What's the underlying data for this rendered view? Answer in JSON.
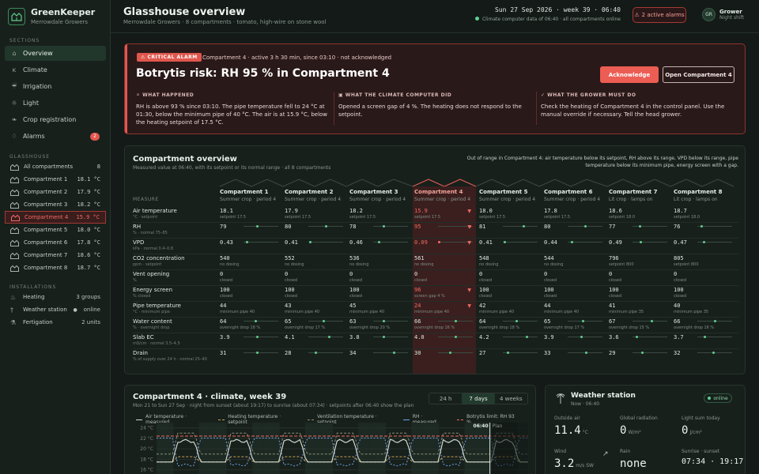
{
  "brand": {
    "name": "GreenKeeper",
    "sub": "Merrowdale Growers"
  },
  "sidebar": {
    "sections_label": "SECTIONS",
    "items": [
      {
        "label": "Overview",
        "icon": "home-icon",
        "active": true
      },
      {
        "label": "Climate",
        "icon": "thermometer-icon"
      },
      {
        "label": "Irrigation",
        "icon": "droplet-icon"
      },
      {
        "label": "Light",
        "icon": "sun-icon"
      },
      {
        "label": "Crop registration",
        "icon": "leaf-icon"
      },
      {
        "label": "Alarms",
        "icon": "bell-icon",
        "badge": "2"
      }
    ],
    "glasshouse_label": "GLASSHOUSE",
    "glasshouse": [
      {
        "label": "All compartments",
        "value": "8"
      },
      {
        "label": "Compartment 1",
        "value": "18.1 °C"
      },
      {
        "label": "Compartment 2",
        "value": "17.9 °C"
      },
      {
        "label": "Compartment 3",
        "value": "18.2 °C"
      },
      {
        "label": "Compartment 4",
        "value": "15.9 °C",
        "alarm": true
      },
      {
        "label": "Compartment 5",
        "value": "18.0 °C"
      },
      {
        "label": "Compartment 6",
        "value": "17.8 °C"
      },
      {
        "label": "Compartment 7",
        "value": "18.6 °C"
      },
      {
        "label": "Compartment 8",
        "value": "18.7 °C"
      }
    ],
    "installations_label": "INSTALLATIONS",
    "installations": [
      {
        "label": "Heating",
        "value": "3 groups",
        "icon": "flame-icon"
      },
      {
        "label": "Weather station",
        "value": "online",
        "icon": "antenna-icon",
        "online": true
      },
      {
        "label": "Fertigation",
        "value": "2 units",
        "icon": "flask-icon"
      }
    ]
  },
  "header": {
    "title": "Glasshouse overview",
    "subtitle": "Merrowdale Growers · 8 compartments · tomato, high-wire on stone wool",
    "date": "Sun 27 Sep 2026 · week 39 · 06:40",
    "status": "Climate computer data of 06:40 · all compartments online",
    "alarms": "2 active alarms",
    "user_initials": "GR",
    "user_name": "Grower",
    "user_role": "Night shift"
  },
  "alert": {
    "tag": "CRITICAL ALARM",
    "meta": "Compartment 4 · active 3 h 30 min, since 03:10 · not acknowledged",
    "title": "Botrytis risk: RH 95 % in Compartment 4",
    "ack": "Acknowledge",
    "open": "Open Compartment 4",
    "cols": [
      {
        "caption": "WHAT HAPPENED",
        "text": "RH is above 93 % since 03:10. The pipe temperature fell to 24 °C at 01:30, below the minimum pipe of 40 °C. The air is at 15.9 °C, below the heating setpoint of 17.5 °C."
      },
      {
        "caption": "WHAT THE CLIMATE COMPUTER DID",
        "text": "Opened a screen gap of 4 %. The heating does not respond to the setpoint."
      },
      {
        "caption": "WHAT THE GROWER MUST DO",
        "text": "Check the heating of Compartment 4 in the control panel. Use the manual override if necessary. Tell the head grower."
      }
    ]
  },
  "overview": {
    "title": "Compartment overview",
    "subtitle": "Measured value at 06:40, with its setpoint or its normal range · all 8 compartments",
    "note": "Out of range in Compartment 4: air temperature below its setpoint, RH above its range, VPD below its range, pipe temperature below its minimum pipe, energy screen with a gap.",
    "measure_header": "MEASURE",
    "compartments": [
      {
        "name": "Compartment 1",
        "crop": "Summer crop · period 4"
      },
      {
        "name": "Compartment 2",
        "crop": "Summer crop · period 4"
      },
      {
        "name": "Compartment 3",
        "crop": "Summer crop · period 4"
      },
      {
        "name": "Compartment 4",
        "crop": "Summer crop · period 4",
        "alarm": true
      },
      {
        "name": "Compartment 5",
        "crop": "Summer crop · period 4"
      },
      {
        "name": "Compartment 6",
        "crop": "Summer crop · period 4"
      },
      {
        "name": "Compartment 7",
        "crop": "Lit crop · lamps on"
      },
      {
        "name": "Compartment 8",
        "crop": "Lit crop · lamps on"
      }
    ],
    "rows": [
      {
        "label": "Air temperature",
        "unit": "°C · setpoint",
        "spark": false,
        "cells": [
          {
            "v": "18.1",
            "s": "setpoint 17.5"
          },
          {
            "v": "17.9",
            "s": "setpoint 17.5"
          },
          {
            "v": "18.2",
            "s": "setpoint 17.5"
          },
          {
            "v": "15.9",
            "s": "setpoint 17.5",
            "al": true
          },
          {
            "v": "18.0",
            "s": "setpoint 17.5"
          },
          {
            "v": "17.8",
            "s": "setpoint 17.5"
          },
          {
            "v": "18.6",
            "s": "setpoint 18.0"
          },
          {
            "v": "18.7",
            "s": "setpoint 18.0"
          }
        ]
      },
      {
        "label": "RH",
        "unit": "% · normal 75–85",
        "spark": true,
        "cells": [
          {
            "v": "79",
            "p": 0.4
          },
          {
            "v": "80",
            "p": 0.5
          },
          {
            "v": "78",
            "p": 0.3
          },
          {
            "v": "95",
            "p": 0.95,
            "al": true
          },
          {
            "v": "81",
            "p": 0.6
          },
          {
            "v": "80",
            "p": 0.5
          },
          {
            "v": "77",
            "p": 0.2
          },
          {
            "v": "76",
            "p": 0.1
          }
        ]
      },
      {
        "label": "VPD",
        "unit": "kPa · normal 0.4–0.8",
        "spark": true,
        "cells": [
          {
            "v": "0.43",
            "p": 0.07
          },
          {
            "v": "0.41",
            "p": 0.03
          },
          {
            "v": "0.46",
            "p": 0.15
          },
          {
            "v": "0.09",
            "p": 0.0,
            "al": true
          },
          {
            "v": "0.41",
            "p": 0.03
          },
          {
            "v": "0.44",
            "p": 0.1
          },
          {
            "v": "0.49",
            "p": 0.22
          },
          {
            "v": "0.47",
            "p": 0.17
          }
        ]
      },
      {
        "label": "CO2 concentration",
        "unit": "ppm · setpoint",
        "spark": false,
        "cells": [
          {
            "v": "540",
            "s": "no dosing"
          },
          {
            "v": "552",
            "s": "no dosing"
          },
          {
            "v": "536",
            "s": "no dosing"
          },
          {
            "v": "561",
            "s": "no dosing"
          },
          {
            "v": "548",
            "s": "no dosing"
          },
          {
            "v": "544",
            "s": "no dosing"
          },
          {
            "v": "796",
            "s": "setpoint 800"
          },
          {
            "v": "805",
            "s": "setpoint 800"
          }
        ]
      },
      {
        "label": "Vent opening",
        "unit": "%",
        "spark": false,
        "cells": [
          {
            "v": "0",
            "s": "closed"
          },
          {
            "v": "0",
            "s": "closed"
          },
          {
            "v": "0",
            "s": "closed"
          },
          {
            "v": "0",
            "s": "closed"
          },
          {
            "v": "0",
            "s": "closed"
          },
          {
            "v": "0",
            "s": "closed"
          },
          {
            "v": "0",
            "s": "closed"
          },
          {
            "v": "0",
            "s": "closed"
          }
        ]
      },
      {
        "label": "Energy screen",
        "unit": "% closed",
        "spark": false,
        "cells": [
          {
            "v": "100",
            "s": "closed"
          },
          {
            "v": "100",
            "s": "closed"
          },
          {
            "v": "100",
            "s": "closed"
          },
          {
            "v": "96",
            "s": "screen gap 4 %",
            "al": true
          },
          {
            "v": "100",
            "s": "closed"
          },
          {
            "v": "100",
            "s": "closed"
          },
          {
            "v": "100",
            "s": "closed"
          },
          {
            "v": "100",
            "s": "closed"
          }
        ]
      },
      {
        "label": "Pipe temperature",
        "unit": "°C · minimum pipe",
        "spark": false,
        "cells": [
          {
            "v": "44",
            "s": "minimum pipe 40"
          },
          {
            "v": "43",
            "s": "minimum pipe 40"
          },
          {
            "v": "45",
            "s": "minimum pipe 40"
          },
          {
            "v": "24",
            "s": "minimum pipe 40",
            "al": true
          },
          {
            "v": "42",
            "s": "minimum pipe 40"
          },
          {
            "v": "44",
            "s": "minimum pipe 40"
          },
          {
            "v": "41",
            "s": "minimum pipe 35"
          },
          {
            "v": "40",
            "s": "minimum pipe 35"
          }
        ]
      },
      {
        "label": "Water content",
        "unit": "% · overnight drop",
        "spark": true,
        "cells": [
          {
            "v": "64",
            "s": "overnight drop 18 %",
            "p": 0.35
          },
          {
            "v": "65",
            "s": "overnight drop 17 %",
            "p": 0.45
          },
          {
            "v": "63",
            "s": "overnight drop 20 %",
            "p": 0.3
          },
          {
            "v": "66",
            "s": "overnight drop 16 %",
            "p": 0.5
          },
          {
            "v": "64",
            "s": "overnight drop 18 %",
            "p": 0.4
          },
          {
            "v": "65",
            "s": "overnight drop 17 %",
            "p": 0.45
          },
          {
            "v": "67",
            "s": "overnight drop 15 %",
            "p": 0.55
          },
          {
            "v": "66",
            "s": "overnight drop 16 %",
            "p": 0.5
          }
        ]
      },
      {
        "label": "Slab EC",
        "unit": "mS/cm · normal 3.5–4.5",
        "spark": true,
        "cells": [
          {
            "v": "3.9",
            "p": 0.4
          },
          {
            "v": "4.1",
            "p": 0.6
          },
          {
            "v": "3.8",
            "p": 0.3
          },
          {
            "v": "4.0",
            "p": 0.5
          },
          {
            "v": "4.2",
            "p": 0.7
          },
          {
            "v": "3.9",
            "p": 0.4
          },
          {
            "v": "3.6",
            "p": 0.1
          },
          {
            "v": "3.7",
            "p": 0.2
          }
        ]
      },
      {
        "label": "Drain",
        "unit": "% of supply over 24 h · normal 25–40",
        "spark": true,
        "cells": [
          {
            "v": "31",
            "p": 0.4
          },
          {
            "v": "28",
            "p": 0.2
          },
          {
            "v": "34",
            "p": 0.6
          },
          {
            "v": "30",
            "p": 0.33
          },
          {
            "v": "27",
            "p": 0.13
          },
          {
            "v": "33",
            "p": 0.53
          },
          {
            "v": "29",
            "p": 0.27
          },
          {
            "v": "32",
            "p": 0.47
          }
        ]
      }
    ]
  },
  "climate": {
    "title": "Compartment 4 · climate, week 39",
    "subtitle": "Mon 21 to Sun 27 Sep · night from sunset (about 19:17) to sunrise (about 07:34) · setpoints after 06:40 show the plan",
    "ranges": [
      "24 h",
      "7 days",
      "4 weeks"
    ],
    "active_range": "7 days",
    "legend": [
      "Air temperature · measured",
      "Heating temperature · setpoint",
      "Ventilation temperature · setpoint",
      "RH · measured",
      "Botrytis limit: RH 93 %"
    ],
    "now_label": "06:40",
    "plan_label": "Plan",
    "y_ticks": [
      "24 °C",
      "22 °C",
      "20 °C",
      "18 °C",
      "16 °C"
    ]
  },
  "chart_data": {
    "type": "line",
    "title": "Compartment 4 · climate, week 39",
    "x_range_days": [
      0,
      7
    ],
    "ylim": [
      14,
      25
    ],
    "yticks": [
      16,
      18,
      20,
      22,
      24
    ],
    "series": [
      {
        "name": "Air temperature · measured",
        "color": "#cfd9d2",
        "day": 21.5,
        "night": 17.5
      },
      {
        "name": "Heating temperature · setpoint",
        "color": "#c9a257",
        "day": 18.5,
        "night": 17.5
      },
      {
        "name": "Ventilation temperature · setpoint",
        "color": "#8b8e74",
        "day": 23.0,
        "night": 19.0
      },
      {
        "name": "RH · measured",
        "color": "#6da3e8",
        "day_pct": 78,
        "night_pct": 92
      },
      {
        "name": "Botrytis limit: RH 93 %",
        "color": "#f26b62",
        "value_pct": 93
      }
    ],
    "now_day": 6.28
  },
  "weather": {
    "title": "Weather station",
    "sub": "Now · 06:40",
    "status": "online",
    "cells": [
      {
        "label": "Outside air",
        "value": "11.4",
        "unit": "°C"
      },
      {
        "label": "Global radiation",
        "value": "0",
        "unit": "W/m²"
      },
      {
        "label": "Light sum today",
        "value": "0",
        "unit": "J/cm²"
      },
      {
        "label": "Wind",
        "value": "3.2",
        "unit": "m/s SW"
      },
      {
        "label": "Rain",
        "value": "none",
        "unit": ""
      },
      {
        "label": "Sunrise · sunset",
        "value": "07:34 · 19:17",
        "unit": ""
      }
    ]
  }
}
